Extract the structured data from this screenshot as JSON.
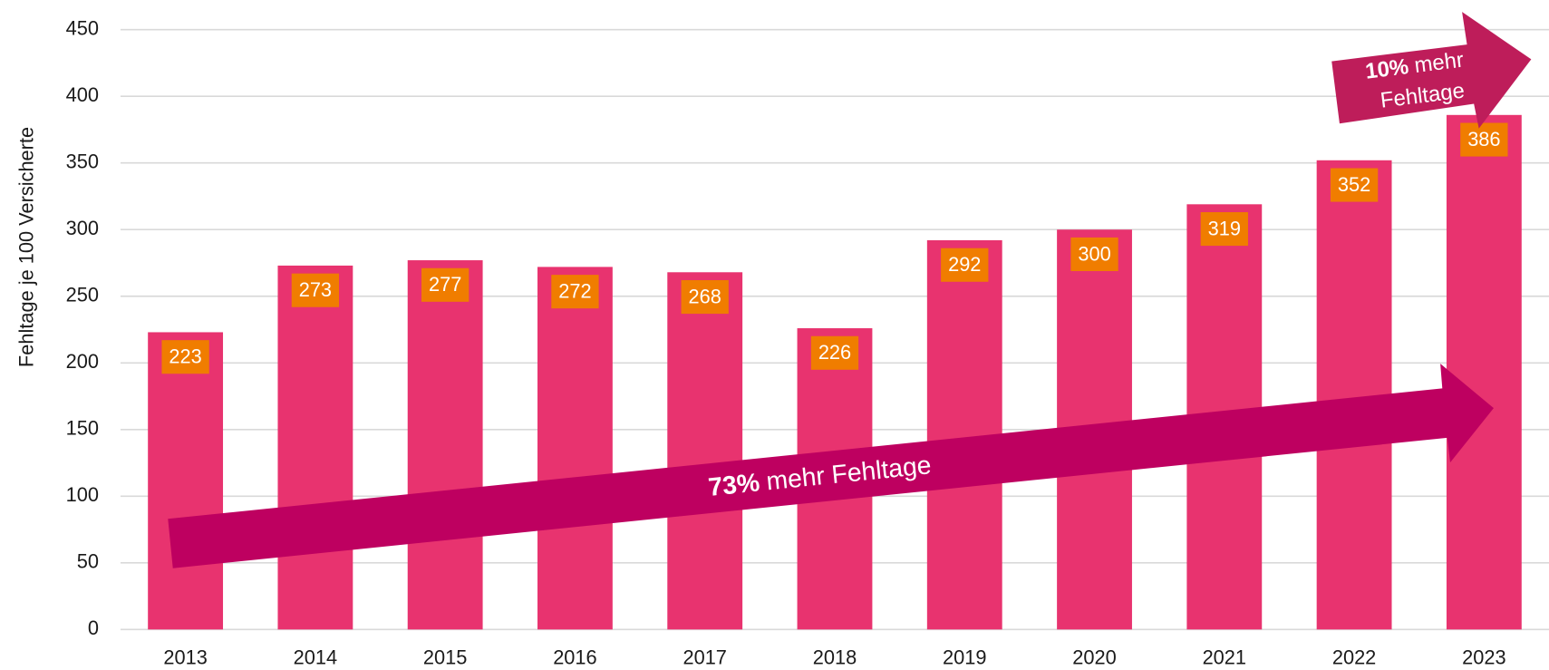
{
  "chart_data": {
    "type": "bar",
    "y_label": "Fehltage je 100 Versicherte",
    "categories": [
      "2013",
      "2014",
      "2015",
      "2016",
      "2017",
      "2018",
      "2019",
      "2020",
      "2021",
      "2022",
      "2023"
    ],
    "values": [
      223,
      273,
      277,
      272,
      268,
      226,
      292,
      300,
      319,
      352,
      386
    ],
    "color": "#e8336f",
    "label_color": "#f07d00",
    "ylim": [
      0,
      450
    ],
    "yticks": [
      0,
      50,
      100,
      150,
      200,
      250,
      300,
      350,
      400,
      450
    ],
    "grid": true,
    "annotations": [
      {
        "bold": "73%",
        "text": "mehr Fehltage"
      },
      {
        "bold": "10%",
        "text": "mehr",
        "line2": "Fehltage"
      }
    ]
  }
}
